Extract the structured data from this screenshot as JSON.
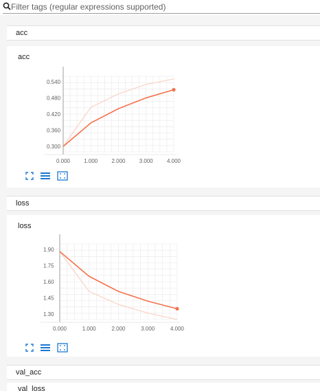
{
  "filter": {
    "placeholder": "Filter tags (regular expressions supported)"
  },
  "colors": {
    "line": "#f4724c",
    "line_raw": "#fbd2c4",
    "grid": "#e8e8e8",
    "axis": "#9e9e9e",
    "icon": "#1976d2"
  },
  "groups": {
    "acc": "acc",
    "loss": "loss",
    "val_acc": "val_acc"
  },
  "cards": {
    "acc_title": "acc",
    "loss_title": "loss",
    "val_loss_title": "val_loss"
  },
  "chart_data": [
    {
      "type": "line",
      "title": "acc",
      "x": [
        0,
        1,
        2,
        3,
        4
      ],
      "xticks": [
        "0.000",
        "1.000",
        "2.000",
        "3.000",
        "4.000"
      ],
      "yticks": [
        "0.300",
        "0.360",
        "0.420",
        "0.480",
        "0.540"
      ],
      "ylim": [
        0.28,
        0.56
      ],
      "xlim": [
        0,
        4
      ],
      "series": [
        {
          "values": [
            0.3,
            0.387,
            0.44,
            0.48,
            0.51
          ],
          "style": "smoothed"
        },
        {
          "values": [
            0.3,
            0.445,
            0.495,
            0.53,
            0.55
          ],
          "style": "raw"
        }
      ],
      "grid": true
    },
    {
      "type": "line",
      "title": "loss",
      "x": [
        0,
        1,
        2,
        3,
        4
      ],
      "xticks": [
        "0.000",
        "1.000",
        "2.000",
        "3.000",
        "4.000"
      ],
      "yticks": [
        "1.30",
        "1.45",
        "1.60",
        "1.75",
        "1.90"
      ],
      "ylim": [
        1.25,
        1.95
      ],
      "xlim": [
        0,
        4
      ],
      "series": [
        {
          "values": [
            1.88,
            1.65,
            1.51,
            1.42,
            1.35
          ],
          "style": "smoothed"
        },
        {
          "values": [
            1.88,
            1.51,
            1.39,
            1.31,
            1.25
          ],
          "style": "raw"
        }
      ],
      "grid": true
    }
  ],
  "icons": [
    "expand-icon",
    "list-icon",
    "fit-domain-icon"
  ]
}
